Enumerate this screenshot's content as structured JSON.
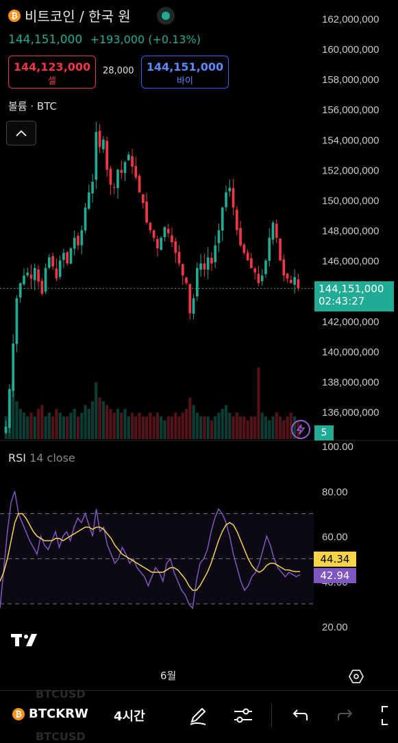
{
  "header": {
    "title": "비트코인 / 한국 원",
    "price": "144,151,000",
    "change": "+193,000 (+0.13%)"
  },
  "orderbox": {
    "sell_price": "144,123,000",
    "sell_label": "셀",
    "spread": "28,000",
    "buy_price": "144,151,000",
    "buy_label": "바이"
  },
  "volume_label": "볼륨 · BTC",
  "last_price_tag": {
    "price": "144,151,000",
    "countdown": "02:43:27"
  },
  "indicator_count": "5",
  "rsi": {
    "name": "RSI",
    "params": "14 close",
    "ma_value": "44.34",
    "rsi_value": "42.94"
  },
  "x_label": "6월",
  "toolbar": {
    "symbol": "BTCKRW",
    "timeframe": "4시간",
    "ghost_symbol": "BTCUSD"
  },
  "colors": {
    "up": "#22ab94",
    "down": "#f23645",
    "rsi": "#7e57c2",
    "rsi_ma": "#f7d54a"
  },
  "chart_data": [
    {
      "type": "candlestick",
      "ylim": [
        134500000,
        162500000
      ],
      "yticks": [
        "162,000,000",
        "160,000,000",
        "158,000,000",
        "156,000,000",
        "154,000,000",
        "152,000,000",
        "150,000,000",
        "148,000,000",
        "146,000,000",
        "144,000,000",
        "142,000,000",
        "140,000,000",
        "138,000,000",
        "136,000,000"
      ],
      "ytick_values": [
        162000000,
        160000000,
        158000000,
        156000000,
        154000000,
        152000000,
        150000000,
        148000000,
        146000000,
        144000000,
        142000000,
        140000000,
        138000000,
        136000000
      ],
      "last_price": 144151000,
      "path_close": [
        135.0,
        137.5,
        140.5,
        143.5,
        144.5,
        145.0,
        145.2,
        144.8,
        145.5,
        144.6,
        143.8,
        145.5,
        146.2,
        145.6,
        144.8,
        146.0,
        146.5,
        145.8,
        146.8,
        147.5,
        147.0,
        148.0,
        149.5,
        150.5,
        151.2,
        154.5,
        153.5,
        154.0,
        152.0,
        151.0,
        150.8,
        152.0,
        151.8,
        152.5,
        153.0,
        152.2,
        151.5,
        150.5,
        149.8,
        148.5,
        148.0,
        147.5,
        146.8,
        147.5,
        148.2,
        147.8,
        147.2,
        146.5,
        145.8,
        145.0,
        144.5,
        142.5,
        143.5,
        145.5,
        145.8,
        145.4,
        146.2,
        145.8,
        147.0,
        148.0,
        149.5,
        150.5,
        150.8,
        149.5,
        148.0,
        147.0,
        146.5,
        146.0,
        145.5,
        145.2,
        144.5,
        145.0,
        146.0,
        147.5,
        148.5,
        147.5,
        146.0,
        145.0,
        144.8,
        144.5,
        144.9,
        144.151
      ],
      "volume_relative": [
        0.3,
        0.55,
        0.75,
        0.5,
        0.4,
        0.35,
        0.3,
        0.35,
        0.3,
        0.4,
        0.45,
        0.3,
        0.35,
        0.3,
        0.4,
        0.35,
        0.3,
        0.3,
        0.35,
        0.4,
        0.3,
        0.35,
        0.45,
        0.4,
        0.5,
        0.75,
        0.55,
        0.5,
        0.45,
        0.4,
        0.35,
        0.4,
        0.35,
        0.4,
        0.3,
        0.35,
        0.3,
        0.35,
        0.3,
        0.3,
        0.35,
        0.3,
        0.35,
        0.3,
        0.25,
        0.3,
        0.3,
        0.35,
        0.3,
        0.35,
        0.4,
        0.55,
        0.45,
        0.35,
        0.3,
        0.3,
        0.3,
        0.25,
        0.3,
        0.35,
        0.4,
        0.45,
        0.35,
        0.3,
        0.35,
        0.3,
        0.3,
        0.25,
        0.3,
        0.3,
        0.95,
        0.35,
        0.3,
        0.25,
        0.3,
        0.35,
        0.3,
        0.25,
        0.3,
        0.35,
        0.3,
        0.25
      ]
    },
    {
      "type": "line",
      "name": "RSI 14 close",
      "ylim": [
        10,
        100
      ],
      "yticks": [
        "100.00",
        "80.00",
        "60.00",
        "40.00",
        "20.00"
      ],
      "ytick_values": [
        100,
        80,
        60,
        40,
        20
      ],
      "bands": [
        70,
        50,
        30
      ],
      "rsi_series": [
        28,
        45,
        62,
        75,
        80,
        70,
        66,
        62,
        58,
        55,
        52,
        60,
        56,
        54,
        58,
        62,
        55,
        60,
        62,
        58,
        64,
        68,
        66,
        70,
        65,
        60,
        72,
        62,
        64,
        56,
        52,
        48,
        50,
        55,
        52,
        48,
        50,
        46,
        44,
        42,
        38,
        42,
        46,
        44,
        40,
        48,
        50,
        44,
        40,
        36,
        34,
        30,
        28,
        40,
        48,
        50,
        54,
        62,
        68,
        72,
        70,
        66,
        60,
        52,
        46,
        40,
        36,
        38,
        42,
        44,
        48,
        54,
        60,
        56,
        50,
        46,
        44,
        42,
        44,
        43,
        42,
        42.94
      ],
      "ma_series": [
        40,
        44,
        50,
        58,
        66,
        70,
        70,
        68,
        65,
        62,
        60,
        59,
        58,
        58,
        58,
        59,
        59,
        58,
        59,
        60,
        61,
        62,
        63,
        64,
        64,
        63,
        64,
        64,
        63,
        61,
        59,
        56,
        54,
        52,
        51,
        50,
        49,
        48,
        47,
        46,
        45,
        44,
        44,
        44,
        44,
        45,
        46,
        46,
        45,
        43,
        41,
        38,
        36,
        36,
        38,
        41,
        44,
        48,
        53,
        58,
        62,
        65,
        66,
        65,
        62,
        58,
        54,
        50,
        47,
        45,
        44,
        45,
        47,
        48,
        48,
        47,
        46,
        45,
        45,
        44.5,
        44.3,
        44.34
      ]
    }
  ]
}
